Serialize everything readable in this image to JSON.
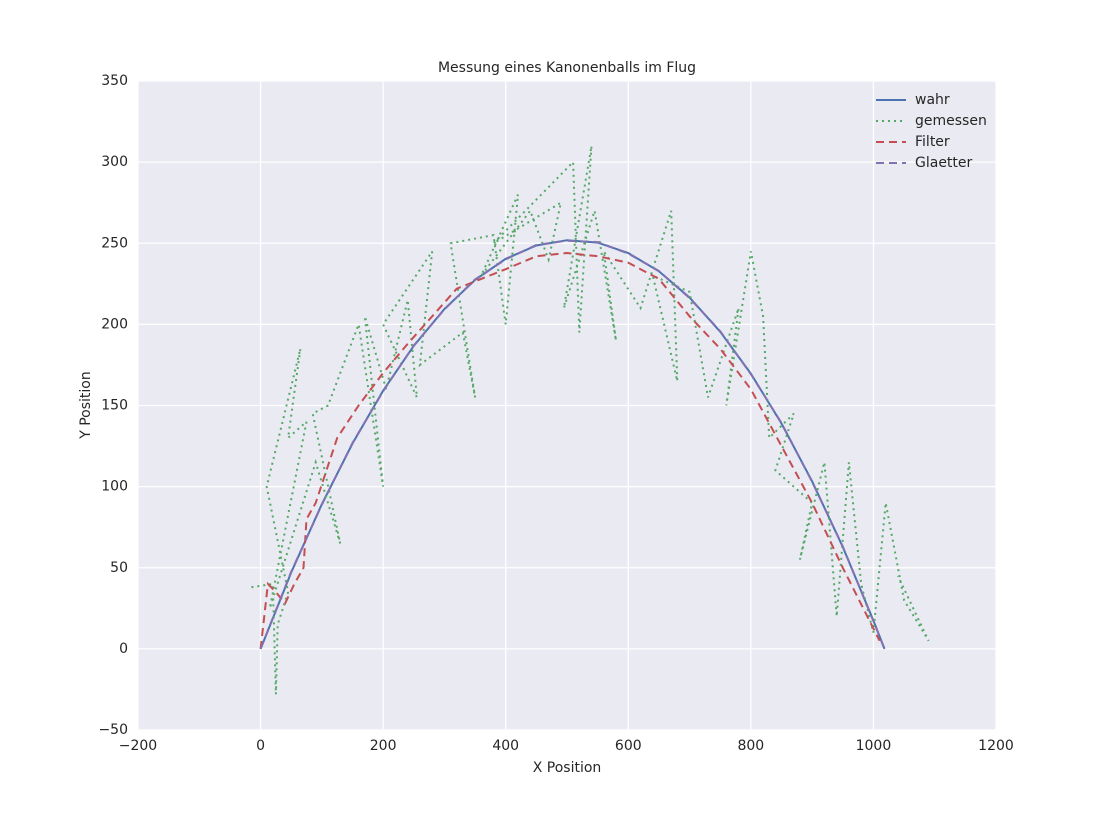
{
  "chart_data": {
    "type": "line",
    "title": "Messung eines Kanonenballs im Flug",
    "xlabel": "X Position",
    "ylabel": "Y Position",
    "xlim": [
      -200,
      1200
    ],
    "ylim": [
      -50,
      350
    ],
    "xticks": [
      {
        "value": -200,
        "label": "−200"
      },
      0,
      200,
      400,
      600,
      800,
      1000,
      1200
    ],
    "yticks": [
      {
        "value": -50,
        "label": "−50"
      },
      0,
      50,
      100,
      150,
      200,
      250,
      300,
      350
    ],
    "grid": true,
    "legend": "upper right",
    "series": [
      {
        "name": "wahr",
        "color": "#4c72b0",
        "style": "solid",
        "x": [
          0,
          50,
          100,
          150,
          200,
          250,
          300,
          350,
          400,
          450,
          500,
          550,
          600,
          650,
          700,
          750,
          800,
          850,
          900,
          950,
          1000,
          1018
        ],
        "values": [
          0,
          47.1,
          89.3,
          126.6,
          159.1,
          186.8,
          209.5,
          227.4,
          240.4,
          248.6,
          251.9,
          250.4,
          243.9,
          232.7,
          216.5,
          195.5,
          169.6,
          138.9,
          103.3,
          62.8,
          17.5,
          0
        ]
      },
      {
        "name": "gemessen",
        "color": "#55a868",
        "style": "dotted",
        "x": [
          -15,
          20,
          25,
          28,
          45,
          10,
          65,
          45,
          75,
          15,
          90,
          130,
          85,
          110,
          160,
          200,
          170,
          205,
          240,
          255,
          200,
          280,
          260,
          330,
          350,
          310,
          380,
          400,
          420,
          360,
          440,
          470,
          490,
          380,
          510,
          520,
          540,
          495,
          545,
          580,
          560,
          620,
          670,
          680,
          640,
          700,
          730,
          780,
          760,
          800,
          820,
          830,
          870,
          840,
          900,
          880,
          920,
          940,
          960,
          980,
          1000,
          1020,
          1050,
          1090,
          1040
        ],
        "values": [
          38,
          40,
          -28,
          15,
          35,
          100,
          185,
          130,
          140,
          25,
          115,
          65,
          145,
          150,
          200,
          100,
          205,
          160,
          215,
          155,
          200,
          245,
          175,
          195,
          155,
          250,
          255,
          200,
          280,
          230,
          270,
          240,
          275,
          250,
          300,
          195,
          310,
          210,
          270,
          190,
          245,
          210,
          270,
          165,
          230,
          220,
          155,
          210,
          150,
          245,
          205,
          130,
          145,
          110,
          90,
          55,
          115,
          20,
          115,
          40,
          10,
          90,
          30,
          5,
          45
        ]
      },
      {
        "name": "Filter",
        "color": "#c44e52",
        "style": "dashed",
        "x": [
          0,
          12,
          25,
          40,
          55,
          70,
          75,
          90,
          125,
          160,
          200,
          240,
          280,
          320,
          360,
          400,
          450,
          500,
          550,
          600,
          650,
          700,
          750,
          800,
          850,
          900,
          950,
          1010
        ],
        "values": [
          0,
          40,
          35,
          28,
          40,
          50,
          80,
          90,
          130,
          150,
          170,
          188,
          205,
          222,
          228,
          234,
          242,
          244,
          242,
          238,
          228,
          205,
          185,
          160,
          125,
          90,
          50,
          5
        ]
      },
      {
        "name": "Glaetter",
        "color": "#8172b2",
        "style": "dashed",
        "x": [
          0,
          50,
          100,
          150,
          200,
          250,
          300,
          350,
          400,
          450,
          500,
          550,
          600,
          650,
          700,
          750,
          800,
          850,
          900,
          950,
          1000,
          1018
        ],
        "values": [
          0,
          47.5,
          89.0,
          126.9,
          158.8,
          187.0,
          209.2,
          227.7,
          240.1,
          248.9,
          251.6,
          250.7,
          243.6,
          232.9,
          216.2,
          195.8,
          169.3,
          139.2,
          103.0,
          63.1,
          17.2,
          0
        ]
      }
    ]
  }
}
